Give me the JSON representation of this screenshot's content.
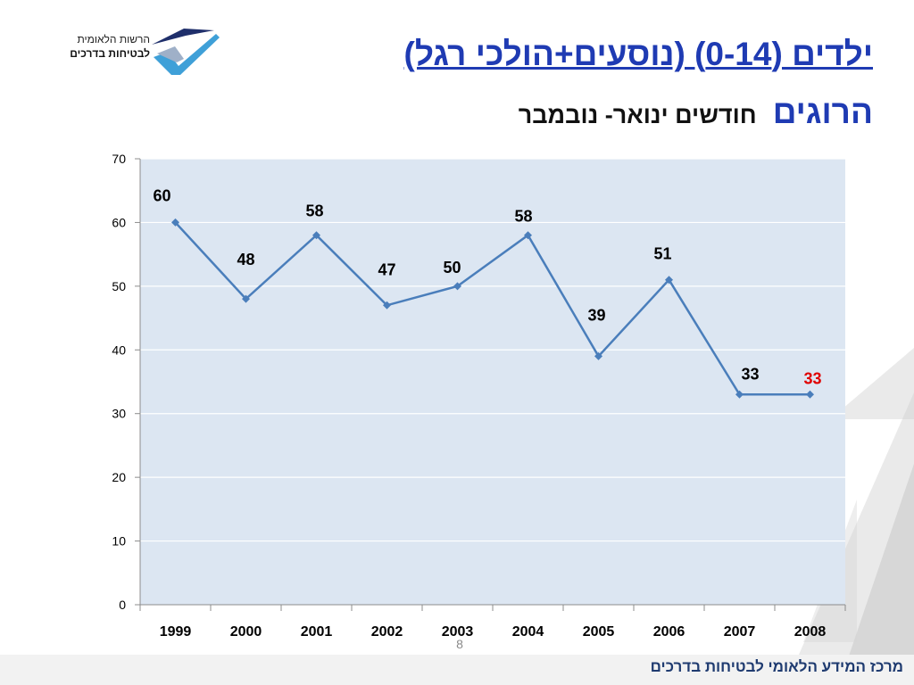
{
  "logo": {
    "line1": "הרשות הלאומית",
    "line2": "לבטיחות בדרכים"
  },
  "header": {
    "title_line1": "ילדים (0-14) (נוסעים+הולכי רגל)",
    "title_line2": "הרוגים",
    "subtitle": "חודשים ינואר- נובמבר"
  },
  "colors": {
    "title": "#1f3bb3",
    "series_line": "#4a7ebb",
    "plot_background": "#dce6f2",
    "highlight_label": "#e00000"
  },
  "chart_data": {
    "type": "line",
    "categories": [
      "1999",
      "2000",
      "2001",
      "2002",
      "2003",
      "2004",
      "2005",
      "2006",
      "2007",
      "2008"
    ],
    "series": [
      {
        "values": [
          60,
          48,
          58,
          47,
          50,
          58,
          39,
          51,
          33,
          33
        ]
      }
    ],
    "data_labels": [
      "60",
      "48",
      "58",
      "47",
      "50",
      "58",
      "39",
      "51",
      "33",
      "33"
    ],
    "highlighted_label_index": 9,
    "ylim": [
      0,
      70
    ],
    "yticks": [
      0,
      10,
      20,
      30,
      40,
      50,
      60,
      70
    ],
    "grid": true,
    "legend": "none",
    "marker": "diamond"
  },
  "page_number": "8",
  "footer": {
    "text": "מרכז המידע הלאומי לבטיחות בדרכים"
  }
}
